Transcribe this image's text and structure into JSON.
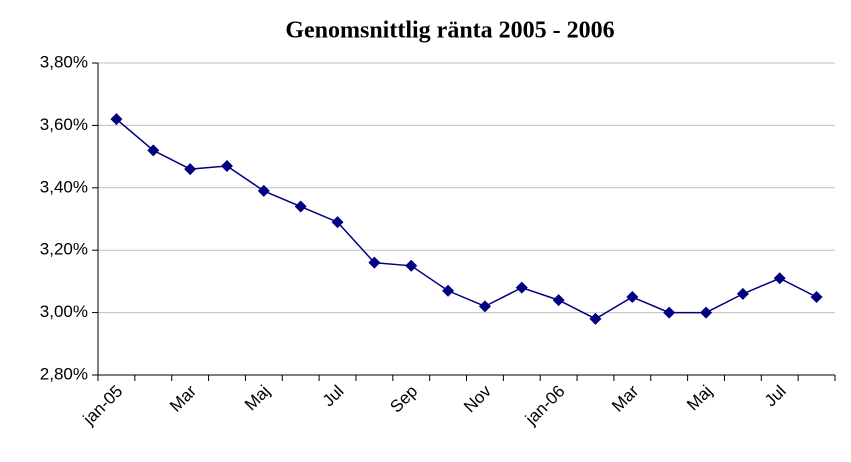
{
  "chart_data": {
    "type": "line",
    "title": "Genomsnittlig ränta 2005 - 2006",
    "categories": [
      "jan-05",
      null,
      "Mar",
      null,
      "Maj",
      null,
      "Jul",
      null,
      "Sep",
      null,
      "Nov",
      null,
      "jan-06",
      null,
      "Mar",
      null,
      "Maj",
      null,
      "Jul",
      null
    ],
    "series": [
      {
        "color": "#000080",
        "values": [
          3.62,
          3.52,
          3.46,
          3.47,
          3.39,
          3.34,
          3.29,
          3.16,
          3.15,
          3.07,
          3.02,
          3.08,
          3.04,
          2.98,
          3.05,
          3.0,
          3.0,
          3.06,
          3.11,
          3.05
        ]
      }
    ],
    "ylim": [
      2.8,
      3.8
    ],
    "yticks": [
      {
        "value": 2.8,
        "label": "2,80%"
      },
      {
        "value": 3.0,
        "label": "3,00%"
      },
      {
        "value": 3.2,
        "label": "3,20%"
      },
      {
        "value": 3.4,
        "label": "3,40%"
      },
      {
        "value": 3.6,
        "label": "3,60%"
      },
      {
        "value": 3.8,
        "label": "3,80%"
      }
    ],
    "grid": true
  }
}
